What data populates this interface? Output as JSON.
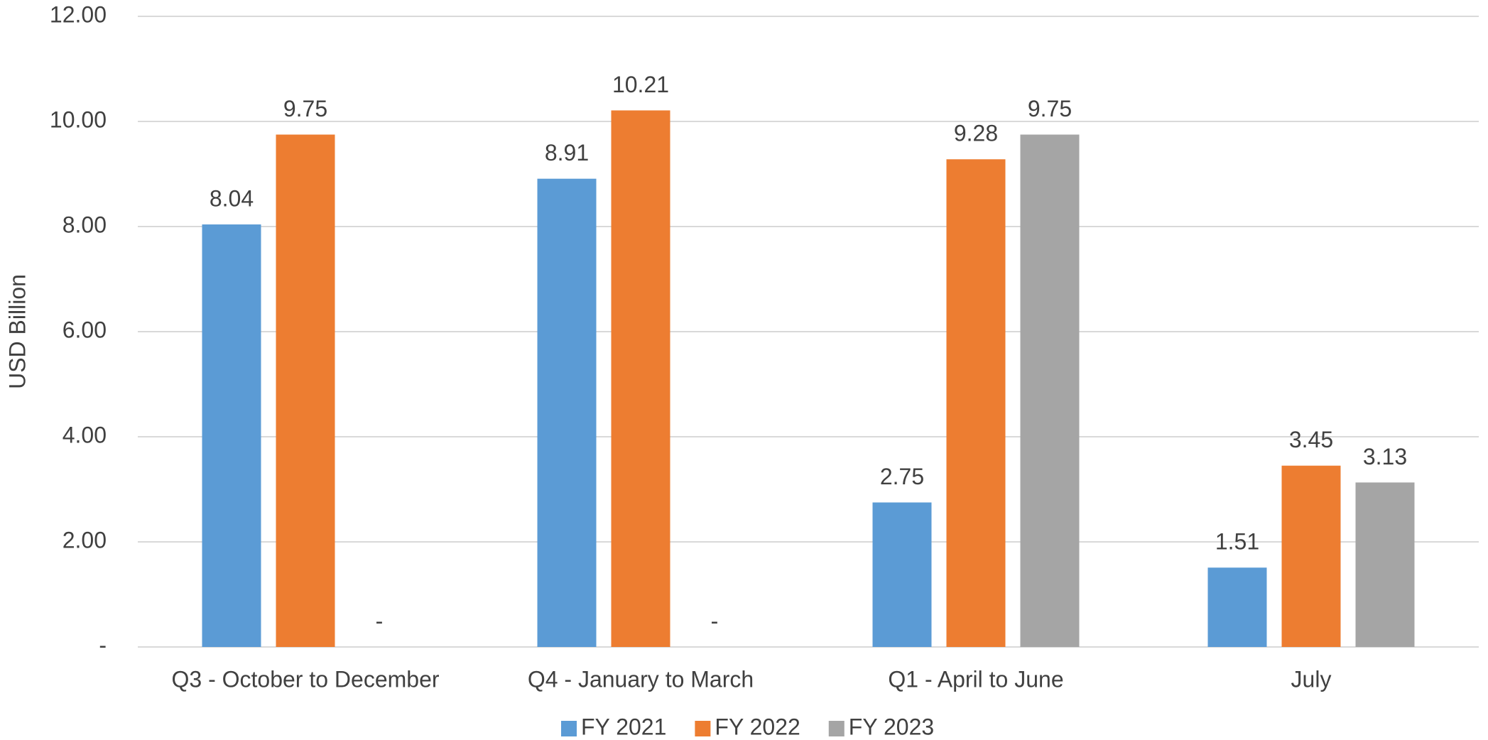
{
  "chart_data": {
    "type": "bar",
    "y_label": "USD Billion",
    "categories": [
      "Q3 - October to December",
      "Q4 - January to March",
      "Q1 - April to June",
      "July"
    ],
    "series": [
      {
        "name": "FY 2021",
        "color": "#5b9bd5",
        "values": [
          8.04,
          8.91,
          2.75,
          1.51
        ]
      },
      {
        "name": "FY 2022",
        "color": "#ed7d31",
        "values": [
          9.75,
          10.21,
          9.28,
          3.45
        ]
      },
      {
        "name": "FY 2023",
        "color": "#a5a5a5",
        "values": [
          0,
          0,
          9.75,
          3.13
        ],
        "value_labels": [
          "-",
          "-",
          "9.75",
          "3.13"
        ]
      }
    ],
    "ylim": [
      0,
      12
    ],
    "yticks": [
      {
        "value": 0,
        "label": "-"
      },
      {
        "value": 2,
        "label": "2.00"
      },
      {
        "value": 4,
        "label": "4.00"
      },
      {
        "value": 6,
        "label": "6.00"
      },
      {
        "value": 8,
        "label": "8.00"
      },
      {
        "value": 10,
        "label": "10.00"
      },
      {
        "value": 12,
        "label": "12.00"
      }
    ],
    "grid": true,
    "legend": "bottom"
  }
}
